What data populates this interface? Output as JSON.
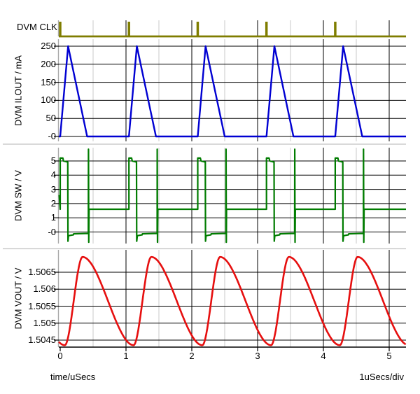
{
  "chart_data": [
    {
      "type": "line",
      "panel": "clk",
      "title": "DVM CLK",
      "color": "#7f7d00",
      "x_unit": "uSecs",
      "waveform": {
        "kind": "clock-pulses",
        "period_us": 1.045,
        "first_pulse_us": 0,
        "num_pulses": 5,
        "pulse_width_us": 0.038,
        "levels": {
          "low": 0,
          "high": 1
        }
      }
    },
    {
      "type": "line",
      "panel": "ilout",
      "title": "DVM ILOUT / mA",
      "color": "#0000d2",
      "ytick_labels": [
        "250",
        "200",
        "150",
        "100",
        "50",
        "-0"
      ],
      "ytick_values": [
        250,
        200,
        150,
        100,
        50,
        0
      ],
      "ylim": [
        0,
        250
      ],
      "waveform": {
        "kind": "dcm-inductor-current",
        "period_us": 1.045,
        "rise_us": 0.12,
        "fall_us": 0.29,
        "peak_mA": 250,
        "base_mA": 0
      }
    },
    {
      "type": "line",
      "panel": "sw",
      "title": "DVM SW / V",
      "color": "#007c00",
      "ytick_labels": [
        "5",
        "4",
        "3",
        "2",
        "1",
        "-0"
      ],
      "ytick_values": [
        5,
        4,
        3,
        2,
        1,
        0
      ],
      "waveform": {
        "kind": "buck-switch-node",
        "period_us": 1.045,
        "on_level_v": 5,
        "on_time_us": 0.115,
        "diode_level_v": -0.2,
        "diode_end_us": 0.43,
        "idle_level_v": 1.6,
        "overshoot_v": 5.2,
        "undershoot_v": -0.65,
        "ring_high_v": 5.83,
        "ring_low_v": -0.72
      }
    },
    {
      "type": "line",
      "panel": "vout",
      "title": "DVM VOUT / V",
      "color": "#e60f0f",
      "ytick_labels": [
        "1.5065",
        "1.506",
        "1.5055",
        "1.505",
        "1.5045"
      ],
      "ytick_values": [
        1.5065,
        1.506,
        1.5055,
        1.505,
        1.5045
      ],
      "waveform": {
        "kind": "output-ripple",
        "period_us": 1.045,
        "min_v": 1.50435,
        "max_v": 1.50695,
        "t_min_us": 0.07,
        "rise_us": 0.27
      }
    }
  ],
  "xaxis": {
    "tick_labels": [
      "0",
      "1",
      "2",
      "3",
      "4",
      "5"
    ],
    "tick_values": [
      0,
      1,
      2,
      3,
      4,
      5
    ],
    "minor_tick_values": [
      0.5,
      1.5,
      2.5,
      3.5,
      4.5
    ],
    "label": "time/uSecs",
    "per_div_label": "1uSecs/div",
    "range_us": [
      0,
      5.25
    ]
  },
  "colors": {
    "grid_major": "#000000",
    "grid_minor": "#c9c9c9",
    "axis_gray": "#a8a8a8",
    "separator": "#c2c2c2",
    "text": "#000000",
    "background": "#ffffff"
  }
}
